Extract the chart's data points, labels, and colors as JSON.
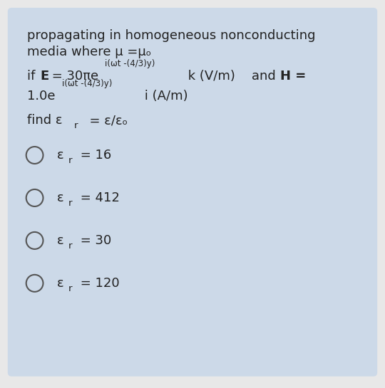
{
  "outer_bg": "#e8e8e8",
  "card_bg": "#ccd9e8",
  "text_color": "#222222",
  "line1": "propagating in homogeneous nonconducting",
  "line2": "media where μ =μₒ",
  "font_size_main": 13,
  "font_size_super": 8.5,
  "font_size_sub": 9.5,
  "options_values": [
    "16",
    "412",
    "30",
    "120"
  ]
}
